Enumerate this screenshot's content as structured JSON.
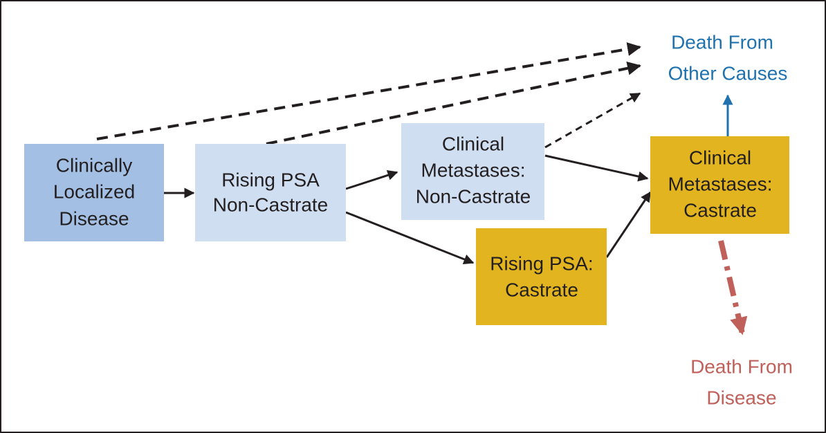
{
  "nodes": [
    {
      "lines": [
        "Clinically",
        "Localized",
        "Disease"
      ]
    },
    {
      "lines": [
        "Rising PSA",
        "Non-Castrate"
      ]
    },
    {
      "lines": [
        "Clinical",
        "Metastases:",
        "Non-Castrate"
      ]
    },
    {
      "lines": [
        "Rising PSA:",
        "Castrate"
      ]
    },
    {
      "lines": [
        "Clinical",
        "Metastases:",
        "Castrate"
      ]
    }
  ],
  "outcomes": [
    {
      "lines": [
        "Death From",
        "Other Causes"
      ]
    },
    {
      "lines": [
        "Death From",
        "Disease"
      ]
    }
  ]
}
